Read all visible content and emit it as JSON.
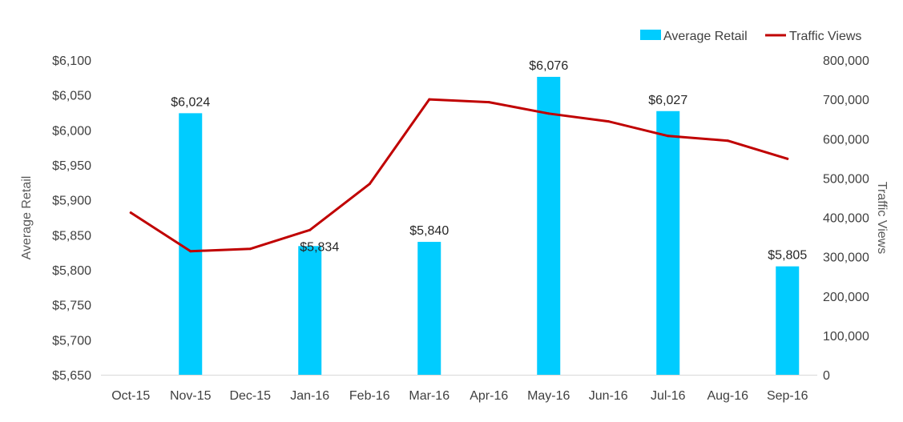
{
  "chart_data": {
    "type": "bar",
    "categories": [
      "Oct-15",
      "Nov-15",
      "Dec-15",
      "Jan-16",
      "Feb-16",
      "Mar-16",
      "Apr-16",
      "May-16",
      "Jun-16",
      "Jul-16",
      "Aug-16",
      "Sep-16"
    ],
    "series": [
      {
        "name": "Average Retail",
        "type": "bar",
        "axis": "left",
        "color": "#00CCFF",
        "values": [
          null,
          6024,
          null,
          5834,
          null,
          5840,
          null,
          6076,
          null,
          6027,
          null,
          5805
        ],
        "labels": [
          null,
          "$6,024",
          null,
          "$5,834",
          null,
          "$5,840",
          null,
          "$6,076",
          null,
          "$6,027",
          null,
          "$5,805"
        ]
      },
      {
        "name": "Traffic Views",
        "type": "line",
        "axis": "right",
        "color": "#C00000",
        "values": [
          412000,
          314000,
          320000,
          368000,
          485000,
          700000,
          693000,
          664000,
          644000,
          607000,
          595000,
          549000
        ]
      }
    ],
    "y_left": {
      "label": "Average Retail",
      "range": [
        5650,
        6100
      ],
      "ticks": [
        5650,
        5700,
        5750,
        5800,
        5850,
        5900,
        5950,
        6000,
        6050,
        6100
      ],
      "tick_labels": [
        "$5,650",
        "$5,700",
        "$5,750",
        "$5,800",
        "$5,850",
        "$5,900",
        "$5,950",
        "$6,000",
        "$6,050",
        "$6,100"
      ]
    },
    "y_right": {
      "label": "Traffic Views",
      "range": [
        0,
        800000
      ],
      "ticks": [
        0,
        100000,
        200000,
        300000,
        400000,
        500000,
        600000,
        700000,
        800000
      ],
      "tick_labels": [
        "0",
        "100,000",
        "200,000",
        "300,000",
        "400,000",
        "500,000",
        "600,000",
        "700,000",
        "800,000"
      ]
    },
    "grid": false,
    "legend_position": "top-right"
  }
}
